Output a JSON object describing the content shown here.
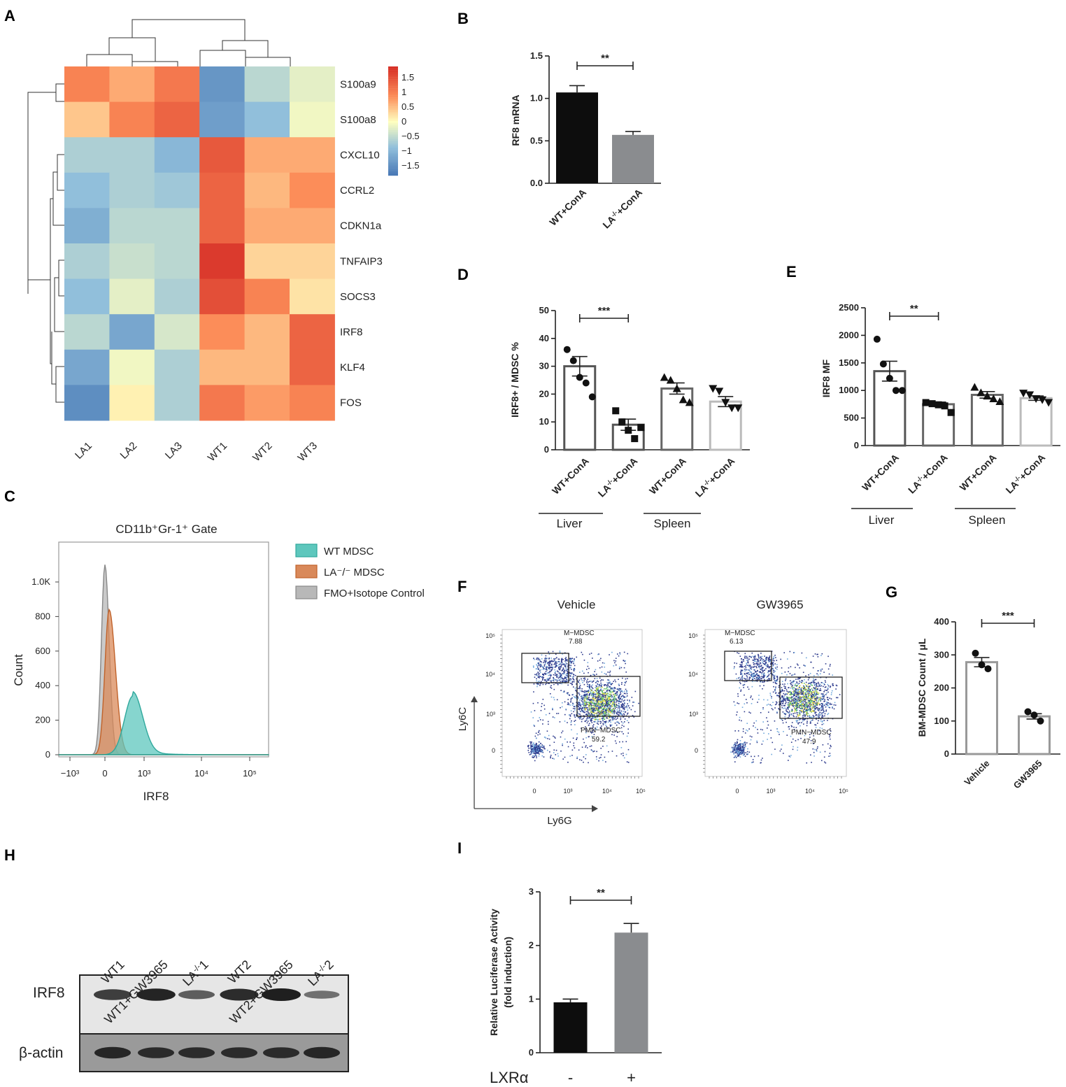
{
  "panel_labels": {
    "A": "A",
    "B": "B",
    "C": "C",
    "D": "D",
    "E": "E",
    "F": "F",
    "G": "G",
    "H": "H",
    "I": "I"
  },
  "colors": {
    "dark_bar": "#0d0d0d",
    "grey_bar": "#8a8c8f",
    "hist_wt": "#5ec7bd",
    "hist_la": "#d9895a",
    "hist_fmo": "#b8b8b8"
  },
  "chart_data": [
    {
      "id": "A",
      "type": "heatmap",
      "columns": [
        "LA1",
        "LA2",
        "LA3",
        "WT1",
        "WT2",
        "WT3"
      ],
      "rows": [
        "S100a9",
        "S100a8",
        "CXCL10",
        "CCRL2",
        "CDKN1a",
        "TNFAIP3",
        "SOCS3",
        "IRF8",
        "KLF4",
        "FOS"
      ],
      "values": [
        [
          0.9,
          0.6,
          1.0,
          -1.3,
          -0.5,
          -0.2
        ],
        [
          0.4,
          0.9,
          1.2,
          -1.2,
          -0.8,
          -0.1
        ],
        [
          -0.6,
          -0.6,
          -0.9,
          1.3,
          0.6,
          0.6
        ],
        [
          -0.8,
          -0.6,
          -0.7,
          1.2,
          0.5,
          0.8
        ],
        [
          -1.0,
          -0.5,
          -0.5,
          1.2,
          0.6,
          0.6
        ],
        [
          -0.6,
          -0.4,
          -0.5,
          1.6,
          0.3,
          0.3
        ],
        [
          -0.8,
          -0.2,
          -0.6,
          1.4,
          0.9,
          0.2
        ],
        [
          -0.5,
          -1.1,
          -0.3,
          0.8,
          0.5,
          1.2
        ],
        [
          -1.1,
          -0.1,
          -0.6,
          0.5,
          0.5,
          1.2
        ],
        [
          -1.4,
          0.1,
          -0.6,
          1.0,
          0.7,
          0.9
        ]
      ],
      "colorbar_ticks": [
        "1.5",
        "1",
        "0.5",
        "0",
        "−0.5",
        "−1",
        "−1.5"
      ],
      "colorbar_range": [
        -1.7,
        1.7
      ]
    },
    {
      "id": "B",
      "type": "bar",
      "ylabel": "RF8 mRNA",
      "categories": [
        "WT+ConA",
        "LA-/-+ConA"
      ],
      "values": [
        1.07,
        0.57
      ],
      "errors": [
        0.08,
        0.04
      ],
      "ylim": [
        0,
        1.5
      ],
      "yticks": [
        "0.0",
        "0.5",
        "1.0",
        "1.5"
      ],
      "significance": "**"
    },
    {
      "id": "D",
      "type": "bar",
      "ylabel": "IRF8+ / MDSC %",
      "categories": [
        "WT+ConA",
        "LA-/-+ConA",
        "WT+ConA",
        "LA-/-+ConA"
      ],
      "values": [
        30,
        9,
        22,
        17.3
      ],
      "errors": [
        3.5,
        2.0,
        2.0,
        1.8
      ],
      "points": [
        [
          36,
          32,
          26,
          24,
          19
        ],
        [
          14,
          10,
          7,
          4,
          8
        ],
        [
          26,
          25,
          22,
          18,
          17
        ],
        [
          22,
          21,
          17,
          15,
          15
        ]
      ],
      "ylim": [
        0,
        50
      ],
      "yticks": [
        "0",
        "10",
        "20",
        "30",
        "40",
        "50"
      ],
      "groups": [
        "Liver",
        "Spleen"
      ],
      "significance": "***"
    },
    {
      "id": "E",
      "type": "bar",
      "ylabel": "IRF8 MF",
      "categories": [
        "WT+ConA",
        "LA-/-+ConA",
        "WT+ConA",
        "LA-/-+ConA"
      ],
      "values": [
        1350,
        750,
        920,
        860
      ],
      "errors": [
        180,
        40,
        60,
        40
      ],
      "points": [
        [
          1930,
          1480,
          1220,
          1000,
          1000
        ],
        [
          780,
          760,
          740,
          720,
          600
        ],
        [
          1060,
          960,
          900,
          850,
          800
        ],
        [
          950,
          920,
          850,
          830,
          780
        ]
      ],
      "ylim": [
        0,
        2500
      ],
      "yticks": [
        "0",
        "500",
        "1000",
        "1500",
        "2000",
        "2500"
      ],
      "groups": [
        "Liver",
        "Spleen"
      ],
      "significance": "**"
    },
    {
      "id": "C",
      "type": "area",
      "title": "CD11b⁺Gr-1⁺ Gate",
      "xlabel": "IRF8",
      "ylabel": "Count",
      "yticks": [
        "0",
        "200",
        "400",
        "600",
        "800",
        "1.0K"
      ],
      "xticks": [
        "−10³",
        "0",
        "10³",
        "10⁴",
        "10⁵"
      ],
      "series": [
        {
          "name": "WT MDSC",
          "peak_count": 340
        },
        {
          "name": "LA⁻/⁻ MDSC",
          "peak_count": 840
        },
        {
          "name": "FMO+Isotope Control",
          "peak_count": 1100
        }
      ]
    },
    {
      "id": "F",
      "type": "scatter",
      "xlabel": "Ly6G",
      "ylabel": "Ly6C",
      "plots": [
        {
          "title": "Vehicle",
          "m_label": "M−MDSC",
          "m_value": "7.88",
          "pmn_label": "PMN−MDSC",
          "pmn_value": "59.2"
        },
        {
          "title": "GW3965",
          "m_label": "M−MDSC",
          "m_value": "6.13",
          "pmn_label": "PMN−MDSC",
          "pmn_value": "47.9"
        }
      ],
      "axis_ticks": [
        "0",
        "10³",
        "10⁴",
        "10⁵"
      ]
    },
    {
      "id": "G",
      "type": "bar",
      "ylabel": "BM-MDSC Count / μL",
      "categories": [
        "Vehicle",
        "GW3965"
      ],
      "values": [
        278,
        114
      ],
      "errors": [
        14,
        8
      ],
      "points": [
        [
          305,
          270,
          258
        ],
        [
          128,
          118,
          100
        ]
      ],
      "ylim": [
        0,
        400
      ],
      "yticks": [
        "0",
        "100",
        "200",
        "300",
        "400"
      ],
      "significance": "***"
    },
    {
      "id": "I",
      "type": "bar",
      "ylabel": "Relative Luciferase Activity (fold induction)",
      "ylabel_line1": "Relative Luciferase Activity",
      "ylabel_line2": "(fold induction)",
      "categories": [
        "-",
        "+"
      ],
      "values": [
        0.94,
        2.24
      ],
      "errors": [
        0.06,
        0.17
      ],
      "ylim": [
        0,
        3
      ],
      "yticks": [
        "0",
        "1",
        "2",
        "3"
      ],
      "xlabel_prefix": "LXRα",
      "significance": "**"
    }
  ],
  "western": {
    "lanes": [
      "WT1",
      "WT1+GW3965",
      "LA-/-1",
      "WT2",
      "WT2+GW3965",
      "LA-/-2"
    ],
    "rows": [
      "IRF8",
      "β-actin"
    ],
    "irf8_intensity": [
      0.75,
      0.95,
      0.5,
      0.9,
      1.0,
      0.35
    ],
    "actin_intensity": [
      0.9,
      0.85,
      0.85,
      0.85,
      0.85,
      0.9
    ]
  }
}
